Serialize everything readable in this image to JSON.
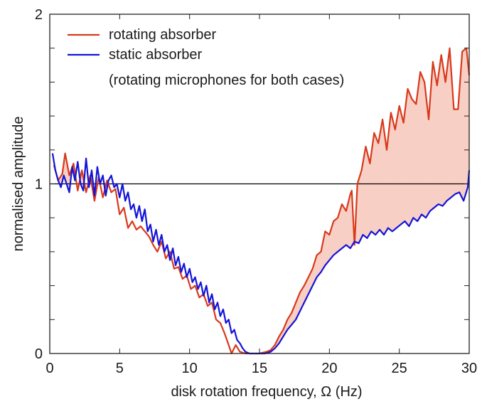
{
  "chart_data": {
    "type": "line",
    "xlabel": "disk rotation frequency, Ω (Hz)",
    "ylabel": "normalised amplitude",
    "xlim": [
      0,
      30
    ],
    "ylim": [
      0,
      2
    ],
    "xticks": [
      0,
      5,
      10,
      15,
      20,
      25,
      30
    ],
    "xtick_labels": [
      "0",
      "5",
      "10",
      "15",
      "20",
      "25",
      "30"
    ],
    "yticks": [
      0,
      1,
      2
    ],
    "ytick_labels": [
      "0",
      "1",
      "2"
    ],
    "yminor_ticks": [
      0.2,
      0.4,
      0.6,
      0.8,
      1.2,
      1.4,
      1.6,
      1.8
    ],
    "reference_line": {
      "y": 1,
      "color": "#000000"
    },
    "shading": {
      "between": [
        "rotating absorber",
        "static absorber"
      ],
      "where": "rotating > static",
      "color": "#f8cfc5"
    },
    "legend": {
      "position": "top-left",
      "entries": [
        {
          "label": "rotating absorber",
          "color": "#d8391c"
        },
        {
          "label": "static absorber",
          "color": "#1414d8"
        }
      ],
      "note": "(rotating microphones for both cases)"
    },
    "series": [
      {
        "name": "rotating absorber",
        "color": "#d8391c",
        "x": [
          0.3,
          0.6,
          0.9,
          1.1,
          1.4,
          1.7,
          2.0,
          2.3,
          2.6,
          2.9,
          3.2,
          3.5,
          3.8,
          4.1,
          4.4,
          4.7,
          5.0,
          5.3,
          5.6,
          5.9,
          6.2,
          6.5,
          6.8,
          7.1,
          7.4,
          7.7,
          8.0,
          8.3,
          8.6,
          8.9,
          9.2,
          9.5,
          9.8,
          10.1,
          10.4,
          10.7,
          11.0,
          11.3,
          11.6,
          11.9,
          12.2,
          12.5,
          12.8,
          13.0,
          13.3,
          13.6,
          14.0,
          14.5,
          15.0,
          15.5,
          15.8,
          16.1,
          16.4,
          16.7,
          17.0,
          17.3,
          17.6,
          17.9,
          18.2,
          18.5,
          18.8,
          19.1,
          19.4,
          19.7,
          20.0,
          20.3,
          20.6,
          20.9,
          21.2,
          21.5,
          21.6,
          21.8,
          22.0,
          22.3,
          22.6,
          22.9,
          23.2,
          23.5,
          23.8,
          24.1,
          24.4,
          24.7,
          25.0,
          25.3,
          25.6,
          25.9,
          26.2,
          26.5,
          26.8,
          27.1,
          27.4,
          27.7,
          28.0,
          28.3,
          28.6,
          28.9,
          29.2,
          29.5,
          29.8,
          30.0
        ],
        "y": [
          1.11,
          1.02,
          1.06,
          1.18,
          1.05,
          1.12,
          0.96,
          1.08,
          0.95,
          1.05,
          0.9,
          1.04,
          0.92,
          1.02,
          0.95,
          0.97,
          0.82,
          0.86,
          0.74,
          0.78,
          0.73,
          0.75,
          0.72,
          0.69,
          0.64,
          0.6,
          0.66,
          0.56,
          0.6,
          0.5,
          0.51,
          0.44,
          0.46,
          0.38,
          0.4,
          0.33,
          0.35,
          0.28,
          0.3,
          0.2,
          0.18,
          0.12,
          0.05,
          0.0,
          0.05,
          0.01,
          0.0,
          0.0,
          0.0,
          0.01,
          0.02,
          0.05,
          0.1,
          0.14,
          0.2,
          0.24,
          0.3,
          0.36,
          0.4,
          0.45,
          0.5,
          0.58,
          0.6,
          0.72,
          0.7,
          0.78,
          0.8,
          0.88,
          0.84,
          0.94,
          0.96,
          0.64,
          1.0,
          1.08,
          1.22,
          1.12,
          1.3,
          1.24,
          1.38,
          1.2,
          1.42,
          1.32,
          1.46,
          1.36,
          1.56,
          1.5,
          1.47,
          1.66,
          1.6,
          1.38,
          1.72,
          1.58,
          1.76,
          1.6,
          1.8,
          1.44,
          1.44,
          1.78,
          1.8,
          1.64
        ],
        "fill_between": true
      },
      {
        "name": "static absorber",
        "color": "#1414d8",
        "x": [
          0.2,
          0.4,
          0.6,
          0.8,
          1.0,
          1.2,
          1.4,
          1.6,
          1.8,
          2.0,
          2.2,
          2.4,
          2.6,
          2.8,
          3.0,
          3.2,
          3.4,
          3.6,
          3.8,
          4.0,
          4.2,
          4.4,
          4.6,
          4.8,
          5.0,
          5.2,
          5.4,
          5.6,
          5.8,
          6.0,
          6.2,
          6.4,
          6.6,
          6.8,
          7.0,
          7.2,
          7.4,
          7.6,
          7.8,
          8.0,
          8.2,
          8.4,
          8.6,
          8.8,
          9.0,
          9.2,
          9.4,
          9.6,
          9.8,
          10.0,
          10.2,
          10.4,
          10.6,
          10.8,
          11.0,
          11.2,
          11.4,
          11.6,
          11.8,
          12.0,
          12.2,
          12.4,
          12.6,
          12.8,
          13.0,
          13.2,
          13.4,
          13.6,
          13.8,
          14.0,
          14.3,
          14.6,
          15.0,
          15.4,
          15.8,
          16.1,
          16.4,
          16.7,
          17.0,
          17.3,
          17.6,
          17.9,
          18.2,
          18.5,
          18.8,
          19.1,
          19.4,
          19.7,
          20.0,
          20.3,
          20.6,
          20.9,
          21.2,
          21.5,
          21.8,
          22.1,
          22.4,
          22.7,
          23.0,
          23.3,
          23.6,
          23.9,
          24.2,
          24.5,
          24.8,
          25.1,
          25.4,
          25.7,
          26.0,
          26.3,
          26.6,
          26.9,
          27.2,
          27.5,
          27.8,
          28.1,
          28.4,
          28.7,
          29.0,
          29.3,
          29.6,
          29.9,
          30.0
        ],
        "y": [
          1.18,
          1.08,
          1.02,
          0.98,
          1.05,
          1.0,
          0.95,
          1.1,
          1.02,
          1.13,
          1.0,
          0.96,
          1.15,
          0.98,
          1.08,
          0.93,
          1.1,
          1.0,
          1.05,
          0.93,
          1.02,
          1.05,
          0.98,
          1.0,
          0.92,
          1.0,
          0.9,
          0.95,
          0.85,
          0.88,
          0.8,
          0.87,
          0.78,
          0.85,
          0.72,
          0.76,
          0.66,
          0.73,
          0.64,
          0.7,
          0.6,
          0.64,
          0.55,
          0.62,
          0.52,
          0.57,
          0.48,
          0.53,
          0.45,
          0.5,
          0.42,
          0.45,
          0.38,
          0.42,
          0.34,
          0.4,
          0.3,
          0.35,
          0.26,
          0.3,
          0.22,
          0.26,
          0.18,
          0.2,
          0.12,
          0.14,
          0.08,
          0.06,
          0.03,
          0.01,
          0.0,
          0.0,
          0.0,
          0.0,
          0.01,
          0.03,
          0.06,
          0.1,
          0.14,
          0.17,
          0.2,
          0.25,
          0.3,
          0.35,
          0.4,
          0.45,
          0.48,
          0.52,
          0.55,
          0.58,
          0.6,
          0.62,
          0.64,
          0.62,
          0.66,
          0.65,
          0.7,
          0.68,
          0.72,
          0.7,
          0.73,
          0.7,
          0.74,
          0.72,
          0.74,
          0.76,
          0.78,
          0.75,
          0.8,
          0.78,
          0.82,
          0.8,
          0.84,
          0.86,
          0.88,
          0.87,
          0.9,
          0.92,
          0.94,
          0.95,
          0.9,
          0.98,
          1.08
        ],
        "fill_between": false
      }
    ]
  }
}
